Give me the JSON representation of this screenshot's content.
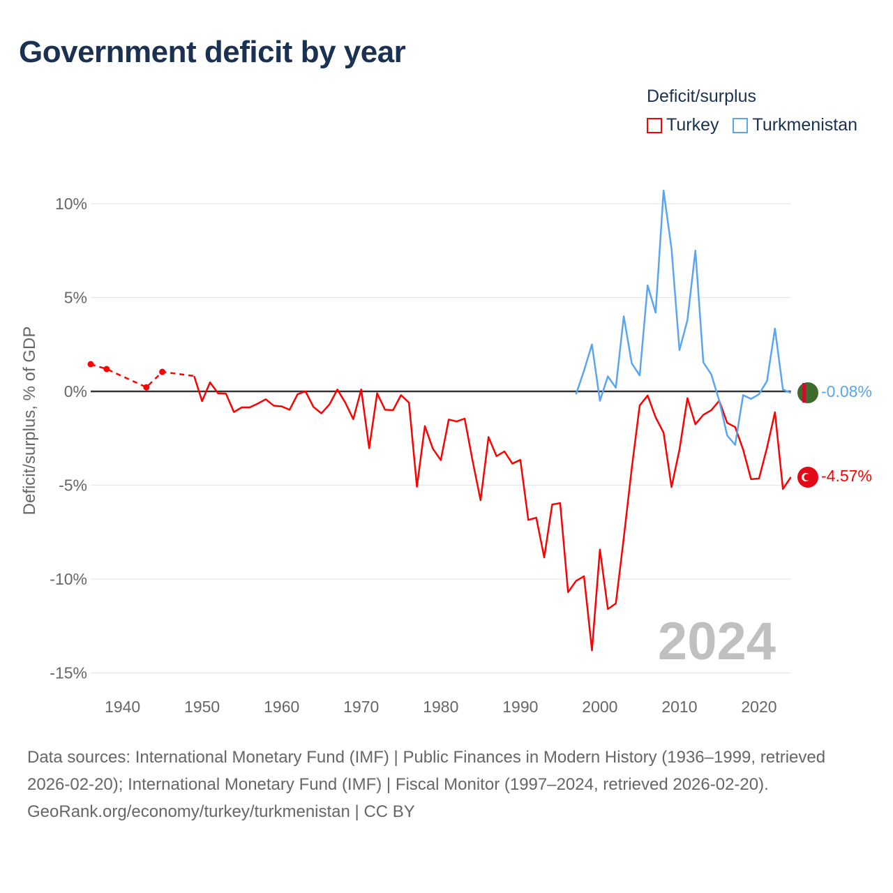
{
  "title": "Government deficit by year",
  "legend": {
    "title": "Deficit/surplus",
    "items": [
      {
        "label": "Turkey",
        "color": "#ff0000"
      },
      {
        "label": "Turkmenistan",
        "color": "#5aa5f0"
      }
    ]
  },
  "year_watermark": "2024",
  "end_labels": {
    "turkey": "-4.57%",
    "turkmenistan": "-0.08%"
  },
  "footer": {
    "sources": "Data sources: International Monetary Fund (IMF) | Public Finances in Modern History (1936–1999, retrieved 2026-02-20); International Monetary Fund (IMF) | Fiscal Monitor (1997–2024, retrieved 2026-02-20).",
    "credit": "GeoRank.org/economy/turkey/turkmenistan | CC BY"
  },
  "chart_data": {
    "type": "line",
    "title": "Government deficit by year",
    "xlabel": "",
    "ylabel": "Deficit/surplus, % of GDP",
    "xlim": [
      1936,
      2024
    ],
    "ylim": [
      -16,
      11
    ],
    "xticks": [
      1940,
      1950,
      1960,
      1970,
      1980,
      1990,
      2000,
      2010,
      2020
    ],
    "xtick_labels": [
      "1940",
      "1950",
      "1960",
      "1970",
      "1980",
      "1990",
      "2000",
      "2010",
      "2020"
    ],
    "yticks": [
      10,
      5,
      0,
      -5,
      -10,
      -15
    ],
    "ytick_labels": [
      "10%",
      "5%",
      "0%",
      "-5%",
      "-10%",
      "-15%"
    ],
    "grid": true,
    "legend_position": "top-right",
    "series": [
      {
        "name": "Turkey",
        "color": "#ff0000",
        "sparse_points": [
          [
            1936,
            1.45
          ],
          [
            1938,
            1.19
          ],
          [
            1943,
            0.22
          ],
          [
            1945,
            1.04
          ],
          [
            1949,
            0.82
          ]
        ],
        "points": [
          [
            1949,
            0.82
          ],
          [
            1950,
            -0.52
          ],
          [
            1951,
            0.48
          ],
          [
            1952,
            -0.1
          ],
          [
            1953,
            -0.12
          ],
          [
            1954,
            -1.1
          ],
          [
            1955,
            -0.85
          ],
          [
            1956,
            -0.85
          ],
          [
            1957,
            -0.65
          ],
          [
            1958,
            -0.42
          ],
          [
            1959,
            -0.76
          ],
          [
            1960,
            -0.8
          ],
          [
            1961,
            -0.98
          ],
          [
            1962,
            -0.15
          ],
          [
            1963,
            0.0
          ],
          [
            1964,
            -0.83
          ],
          [
            1965,
            -1.17
          ],
          [
            1966,
            -0.7
          ],
          [
            1967,
            0.1
          ],
          [
            1968,
            -0.6
          ],
          [
            1969,
            -1.48
          ],
          [
            1970,
            0.1
          ],
          [
            1971,
            -3.03
          ],
          [
            1972,
            -0.1
          ],
          [
            1973,
            -0.98
          ],
          [
            1974,
            -1.0
          ],
          [
            1975,
            -0.2
          ],
          [
            1976,
            -0.6
          ],
          [
            1977,
            -5.08
          ],
          [
            1978,
            -1.85
          ],
          [
            1979,
            -3.05
          ],
          [
            1980,
            -3.66
          ],
          [
            1981,
            -1.5
          ],
          [
            1982,
            -1.6
          ],
          [
            1983,
            -1.45
          ],
          [
            1984,
            -3.7
          ],
          [
            1985,
            -5.8
          ],
          [
            1986,
            -2.43
          ],
          [
            1987,
            -3.45
          ],
          [
            1988,
            -3.2
          ],
          [
            1989,
            -3.85
          ],
          [
            1990,
            -3.65
          ],
          [
            1991,
            -6.85
          ],
          [
            1992,
            -6.73
          ],
          [
            1993,
            -8.85
          ],
          [
            1994,
            -6.03
          ],
          [
            1995,
            -5.95
          ],
          [
            1996,
            -10.7
          ],
          [
            1997,
            -10.1
          ],
          [
            1998,
            -9.85
          ],
          [
            1999,
            -13.8
          ],
          [
            2000,
            -8.43
          ],
          [
            2001,
            -11.6
          ],
          [
            2002,
            -11.3
          ],
          [
            2003,
            -7.8
          ],
          [
            2004,
            -4.1
          ],
          [
            2005,
            -0.75
          ],
          [
            2006,
            -0.22
          ],
          [
            2007,
            -1.38
          ],
          [
            2008,
            -2.2
          ],
          [
            2009,
            -5.1
          ],
          [
            2010,
            -3.1
          ],
          [
            2011,
            -0.36
          ],
          [
            2012,
            -1.75
          ],
          [
            2013,
            -1.25
          ],
          [
            2014,
            -1.0
          ],
          [
            2015,
            -0.5
          ],
          [
            2016,
            -1.68
          ],
          [
            2017,
            -1.9
          ],
          [
            2018,
            -3.1
          ],
          [
            2019,
            -4.68
          ],
          [
            2020,
            -4.64
          ],
          [
            2021,
            -3.0
          ],
          [
            2022,
            -1.11
          ],
          [
            2023,
            -5.2
          ],
          [
            2024,
            -4.57
          ]
        ]
      },
      {
        "name": "Turkmenistan",
        "color": "#5aa5f0",
        "points": [
          [
            1997,
            -0.15
          ],
          [
            1998,
            1.1
          ],
          [
            1999,
            2.5
          ],
          [
            2000,
            -0.5
          ],
          [
            2001,
            0.8
          ],
          [
            2002,
            0.2
          ],
          [
            2003,
            4.0
          ],
          [
            2004,
            1.5
          ],
          [
            2005,
            0.85
          ],
          [
            2006,
            5.65
          ],
          [
            2007,
            4.2
          ],
          [
            2008,
            10.7
          ],
          [
            2009,
            7.6
          ],
          [
            2010,
            2.2
          ],
          [
            2011,
            3.8
          ],
          [
            2012,
            7.5
          ],
          [
            2013,
            1.55
          ],
          [
            2014,
            0.9
          ],
          [
            2015,
            -0.5
          ],
          [
            2016,
            -2.35
          ],
          [
            2017,
            -2.85
          ],
          [
            2018,
            -0.2
          ],
          [
            2019,
            -0.4
          ],
          [
            2020,
            -0.15
          ],
          [
            2021,
            0.55
          ],
          [
            2022,
            3.35
          ],
          [
            2023,
            0.1
          ],
          [
            2024,
            -0.08
          ]
        ]
      }
    ]
  }
}
